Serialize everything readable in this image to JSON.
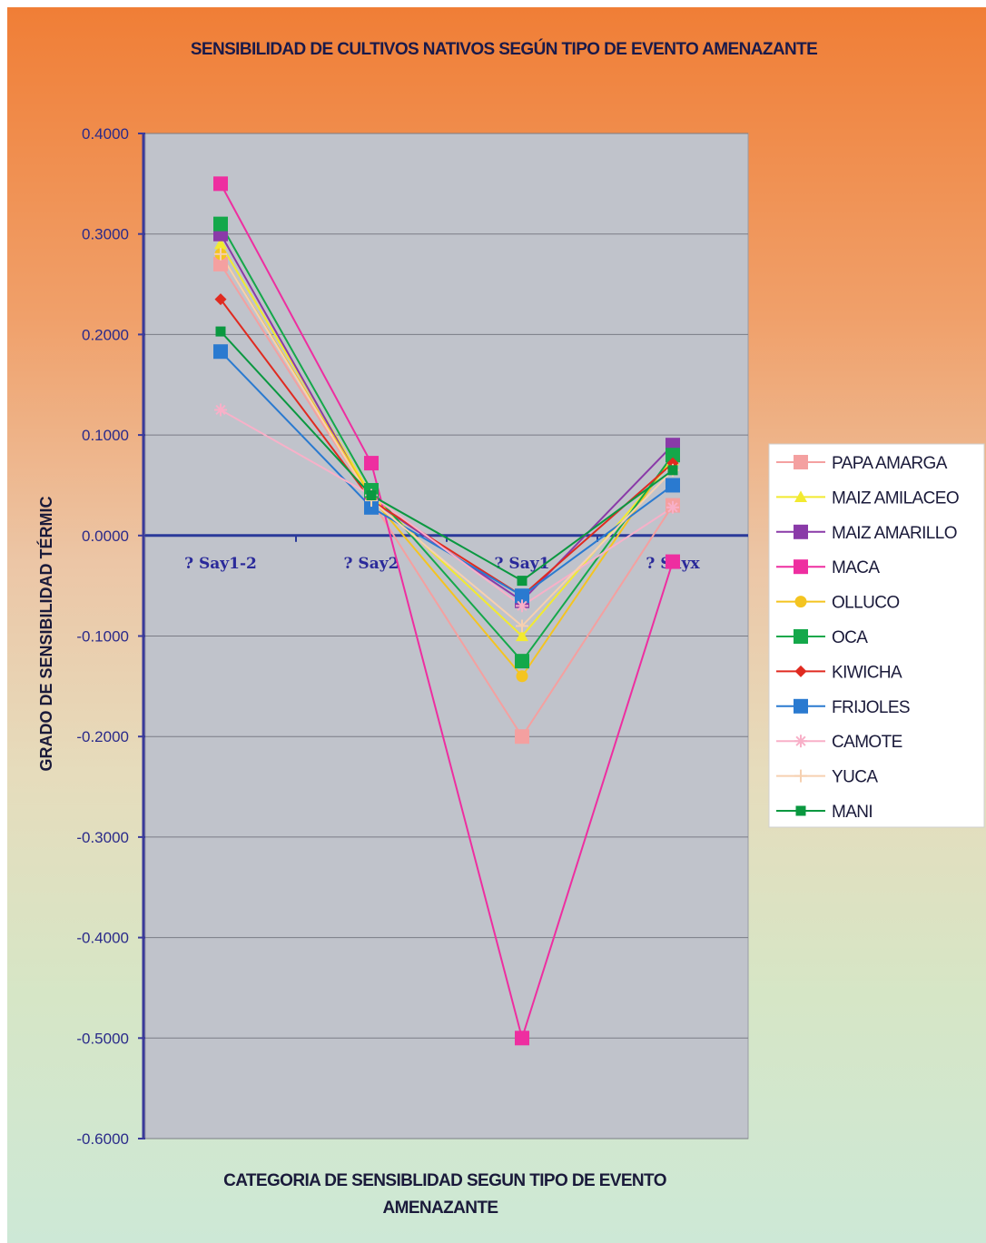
{
  "chart_data": {
    "type": "line",
    "title": "SENSIBILIDAD DE CULTIVOS NATIVOS SEGÚN TIPO DE EVENTO AMENAZANTE",
    "xlabel_line1": "CATEGORIA DE SENSIBLIDAD SEGUN TIPO DE EVENTO",
    "xlabel_line2": "AMENAZANTE",
    "ylabel": "GRADO DE SENSIBILIDAD TÉRMIC",
    "categories": [
      "? Say1-2",
      "? Say2",
      "? Say1",
      "? Sayx"
    ],
    "ylim": [
      -0.6,
      0.4
    ],
    "yticks": [
      "0.4000",
      "0.3000",
      "0.2000",
      "0.1000",
      "0.0000",
      "-0.1000",
      "-0.2000",
      "-0.3000",
      "-0.4000",
      "-0.5000",
      "-0.6000"
    ],
    "grid": true,
    "legend_position": "right",
    "colors": {
      "plot_background": "#c0c3cb",
      "zero_line": "#2a3a9a",
      "axis": "#3a3a9a"
    },
    "series": [
      {
        "name": "PAPA AMARGA",
        "values": [
          0.27,
          0.035,
          -0.2,
          0.03
        ],
        "color": "#f4a0a0",
        "marker": "square"
      },
      {
        "name": "MAIZ AMILACEO",
        "values": [
          0.29,
          0.04,
          -0.1,
          0.075
        ],
        "color": "#f2ea30",
        "marker": "triangle"
      },
      {
        "name": "MAIZ AMARILLO",
        "values": [
          0.3,
          0.035,
          -0.065,
          0.09
        ],
        "color": "#8a3aa8",
        "marker": "square"
      },
      {
        "name": "MACA",
        "values": [
          0.35,
          0.072,
          -0.5,
          -0.026
        ],
        "color": "#ee2ea0",
        "marker": "square"
      },
      {
        "name": "OLLUCO",
        "values": [
          0.28,
          0.038,
          -0.14,
          0.08
        ],
        "color": "#f4c420",
        "marker": "circle"
      },
      {
        "name": "OCA",
        "values": [
          0.31,
          0.045,
          -0.125,
          0.08
        ],
        "color": "#14a84a",
        "marker": "square"
      },
      {
        "name": "KIWICHA",
        "values": [
          0.235,
          0.035,
          -0.06,
          0.072
        ],
        "color": "#e02a20",
        "marker": "diamond"
      },
      {
        "name": "FRIJOLES",
        "values": [
          0.183,
          0.028,
          -0.06,
          0.05
        ],
        "color": "#2a7ad0",
        "marker": "square"
      },
      {
        "name": "CAMOTE",
        "values": [
          0.125,
          0.04,
          -0.07,
          0.028
        ],
        "color": "#f8b0c8",
        "marker": "asterisk"
      },
      {
        "name": "YUCA",
        "values": [
          0.28,
          0.035,
          -0.09,
          0.065
        ],
        "color": "#f6d0b0",
        "marker": "plus"
      },
      {
        "name": "MANI",
        "values": [
          0.203,
          0.04,
          -0.045,
          0.065
        ],
        "color": "#0a9840",
        "marker": "square-small"
      }
    ]
  }
}
